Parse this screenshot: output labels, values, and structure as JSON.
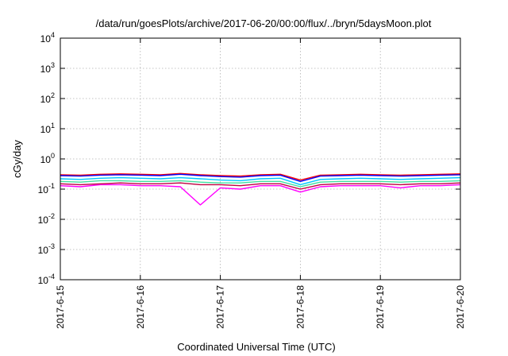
{
  "chart_data": {
    "type": "line",
    "title": "/data/run/goesPlots/archive/2017-06-20/00:00/flux/../bryn/5daysMoon.plot",
    "xlabel": "Coordinated Universal Time (UTC)",
    "ylabel": "cGy/day",
    "yscale": "log",
    "ylim": [
      0.0001,
      10000
    ],
    "xlim": [
      "2017-6-15",
      "2017-6-20"
    ],
    "x_ticks": [
      "2017-6-15",
      "2017-6-16",
      "2017-6-17",
      "2017-6-18",
      "2017-6-19",
      "2017-6-20"
    ],
    "y_ticks": [
      {
        "base": "10",
        "exp": "-4",
        "value": 0.0001
      },
      {
        "base": "10",
        "exp": "-3",
        "value": 0.001
      },
      {
        "base": "10",
        "exp": "-2",
        "value": 0.01
      },
      {
        "base": "10",
        "exp": "-1",
        "value": 0.1
      },
      {
        "base": "10",
        "exp": "0",
        "value": 1
      },
      {
        "base": "10",
        "exp": "1",
        "value": 10
      },
      {
        "base": "10",
        "exp": "2",
        "value": 100
      },
      {
        "base": "10",
        "exp": "3",
        "value": 1000
      },
      {
        "base": "10",
        "exp": "4",
        "value": 10000
      }
    ],
    "grid": true,
    "legend": "none",
    "x": [
      "2017-6-15 00:00",
      "2017-6-15 06:00",
      "2017-6-15 12:00",
      "2017-6-15 18:00",
      "2017-6-16 00:00",
      "2017-6-16 06:00",
      "2017-6-16 12:00",
      "2017-6-16 18:00",
      "2017-6-17 00:00",
      "2017-6-17 06:00",
      "2017-6-17 12:00",
      "2017-6-17 18:00",
      "2017-6-18 00:00",
      "2017-6-18 06:00",
      "2017-6-18 12:00",
      "2017-6-18 18:00",
      "2017-6-19 00:00",
      "2017-6-19 06:00",
      "2017-6-19 12:00",
      "2017-6-19 18:00",
      "2017-6-20 00:00"
    ],
    "series": [
      {
        "color": "#ff0000",
        "values": [
          0.3,
          0.29,
          0.31,
          0.32,
          0.31,
          0.3,
          0.33,
          0.3,
          0.28,
          0.27,
          0.3,
          0.31,
          0.2,
          0.29,
          0.3,
          0.31,
          0.3,
          0.29,
          0.3,
          0.31,
          0.32
        ]
      },
      {
        "color": "#0000ff",
        "values": [
          0.28,
          0.27,
          0.29,
          0.3,
          0.29,
          0.28,
          0.31,
          0.28,
          0.26,
          0.25,
          0.28,
          0.29,
          0.18,
          0.27,
          0.28,
          0.29,
          0.28,
          0.27,
          0.28,
          0.29,
          0.3
        ]
      },
      {
        "color": "#00c8ff",
        "values": [
          0.22,
          0.21,
          0.23,
          0.24,
          0.23,
          0.22,
          0.24,
          0.22,
          0.2,
          0.19,
          0.22,
          0.23,
          0.14,
          0.21,
          0.22,
          0.23,
          0.22,
          0.21,
          0.22,
          0.23,
          0.24
        ]
      },
      {
        "color": "#40e0a0",
        "values": [
          0.18,
          0.17,
          0.19,
          0.19,
          0.18,
          0.18,
          0.19,
          0.17,
          0.16,
          0.16,
          0.18,
          0.18,
          0.12,
          0.17,
          0.18,
          0.18,
          0.18,
          0.17,
          0.18,
          0.18,
          0.19
        ]
      },
      {
        "color": "#ff00ff",
        "values": [
          0.13,
          0.12,
          0.14,
          0.14,
          0.13,
          0.13,
          0.12,
          0.03,
          0.11,
          0.1,
          0.13,
          0.13,
          0.08,
          0.12,
          0.13,
          0.13,
          0.13,
          0.11,
          0.13,
          0.13,
          0.14
        ]
      },
      {
        "color": "#c00040",
        "values": [
          0.15,
          0.14,
          0.15,
          0.16,
          0.15,
          0.15,
          0.16,
          0.14,
          0.14,
          0.13,
          0.15,
          0.15,
          0.1,
          0.14,
          0.15,
          0.15,
          0.15,
          0.14,
          0.15,
          0.15,
          0.16
        ]
      }
    ]
  }
}
